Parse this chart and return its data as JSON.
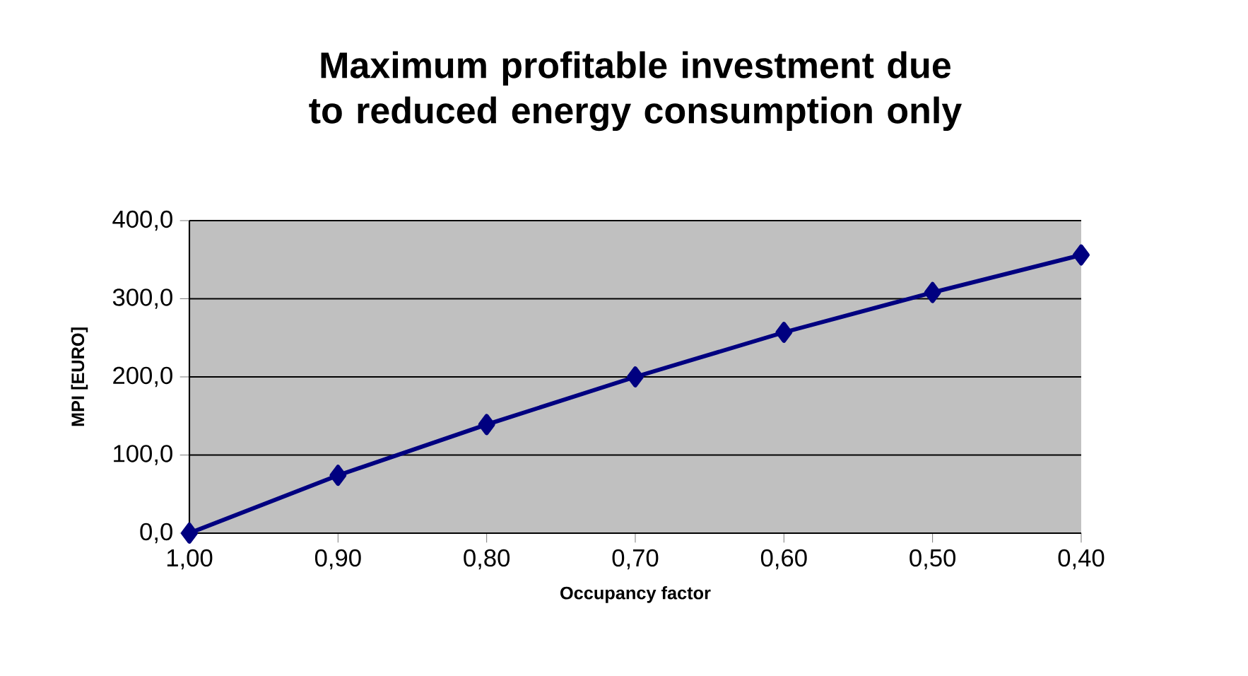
{
  "chart_data": {
    "type": "line",
    "title": "Maximum profitable investment due to reduced energy consumption only",
    "xlabel": "Occupancy factor",
    "ylabel": "MPI [EURO]",
    "x": [
      1.0,
      0.9,
      0.8,
      0.7,
      0.6,
      0.5,
      0.4
    ],
    "series": [
      {
        "color": "#000080",
        "values": [
          0,
          74,
          139,
          200,
          257,
          308,
          356
        ]
      }
    ],
    "xlim": [
      1.0,
      0.4
    ],
    "xticks": [
      {
        "value": 1.0,
        "label": "1,00"
      },
      {
        "value": 0.9,
        "label": "0,90"
      },
      {
        "value": 0.8,
        "label": "0,80"
      },
      {
        "value": 0.7,
        "label": "0,70"
      },
      {
        "value": 0.6,
        "label": "0,60"
      },
      {
        "value": 0.5,
        "label": "0,50"
      },
      {
        "value": 0.4,
        "label": "0,40"
      }
    ],
    "ylim": [
      0,
      400
    ],
    "yticks": [
      {
        "value": 0,
        "label": "0,0"
      },
      {
        "value": 100,
        "label": "100,0"
      },
      {
        "value": 200,
        "label": "200,0"
      },
      {
        "value": 300,
        "label": "300,0"
      },
      {
        "value": 400,
        "label": "400,0"
      }
    ],
    "grid": "y",
    "marker": "diamond",
    "line_style": "solid"
  }
}
